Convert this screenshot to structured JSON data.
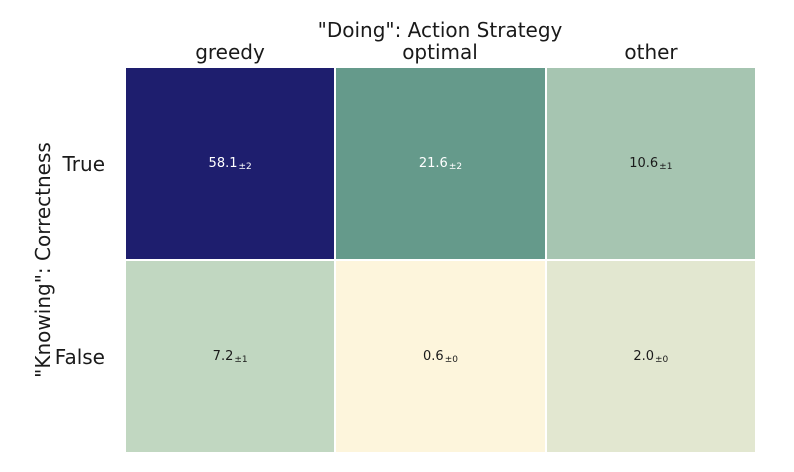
{
  "chart_data": {
    "type": "heatmap",
    "title": "\"Doing\": Action Strategy",
    "ylabel": "\"Knowing\": Correctness",
    "columns": [
      "greedy",
      "optimal",
      "other"
    ],
    "rows": [
      "True",
      "False"
    ],
    "values": [
      [
        58.1,
        21.6,
        10.6
      ],
      [
        7.2,
        0.6,
        2.0
      ]
    ],
    "value_labels": [
      [
        "58.1",
        "21.6",
        "10.6"
      ],
      [
        "7.2",
        "0.6",
        "2.0"
      ]
    ],
    "errors": [
      [
        "±2",
        "±2",
        "±1"
      ],
      [
        "±1",
        "±0",
        "±0"
      ]
    ],
    "colormap": [
      "#fdf5dc",
      "#c3d8c2",
      "#4f8c7e",
      "#1e1e6e"
    ],
    "colorbar": false,
    "grid": false
  }
}
